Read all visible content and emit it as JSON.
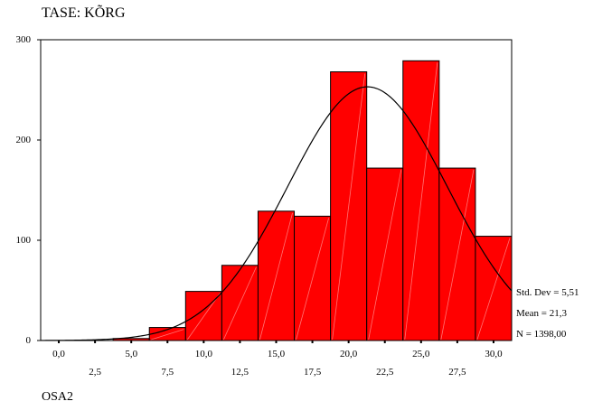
{
  "chart_data": {
    "type": "bar",
    "title": "TASE:  KÕRG",
    "xlabel": "OSA2",
    "ylabel": "",
    "bin_edges": [
      -1.25,
      1.25,
      3.75,
      6.25,
      8.75,
      11.25,
      13.75,
      16.25,
      18.75,
      21.25,
      23.75,
      26.25,
      28.75,
      31.25
    ],
    "values": [
      0,
      0,
      2,
      13,
      49,
      75,
      129,
      124,
      268,
      172,
      279,
      172,
      104
    ],
    "xlim": [
      -1.25,
      31.25
    ],
    "ylim": [
      0,
      300
    ],
    "yticks": [
      0,
      100,
      200,
      300
    ],
    "xticks_upper": [
      "0,0",
      "5,0",
      "10,0",
      "15,0",
      "20,0",
      "25,0",
      "30,0"
    ],
    "xticks_upper_values": [
      0,
      5,
      10,
      15,
      20,
      25,
      30
    ],
    "xticks_lower": [
      "2,5",
      "7,5",
      "12,5",
      "17,5",
      "22,5",
      "27,5"
    ],
    "xticks_lower_values": [
      2.5,
      7.5,
      12.5,
      17.5,
      22.5,
      27.5
    ],
    "normal_curve": {
      "mean": 21.3,
      "std_dev": 5.51,
      "n": 1398,
      "bin_width": 2.5
    },
    "stats": [
      "Std. Dev = 5,51",
      "Mean = 21,3",
      "N = 1398,00"
    ],
    "bar_color": "#ff0000",
    "grid": false
  }
}
